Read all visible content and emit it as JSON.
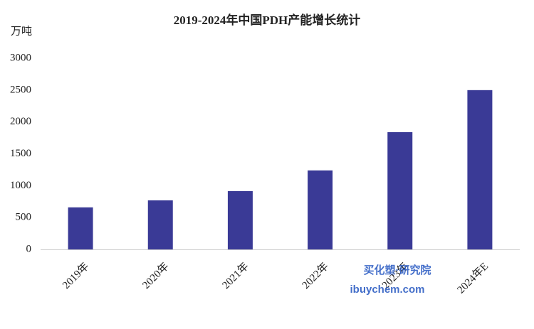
{
  "chart_data": {
    "type": "bar",
    "title": "2019-2024年中国PDH产能增长统计",
    "y_label": "万吨",
    "categories": [
      "2019年",
      "2020年",
      "2021年",
      "2022年",
      "2023年",
      "2024年E"
    ],
    "values": [
      660,
      770,
      915,
      1240,
      1840,
      2500
    ],
    "color": "#3a3a96",
    "ylim": [
      0,
      3000
    ],
    "yticks": [
      0,
      500,
      1000,
      1500,
      2000,
      2500,
      3000
    ],
    "grid": false,
    "watermark": {
      "name": "买化塑·研究院",
      "url": "ibuychem.com"
    }
  }
}
